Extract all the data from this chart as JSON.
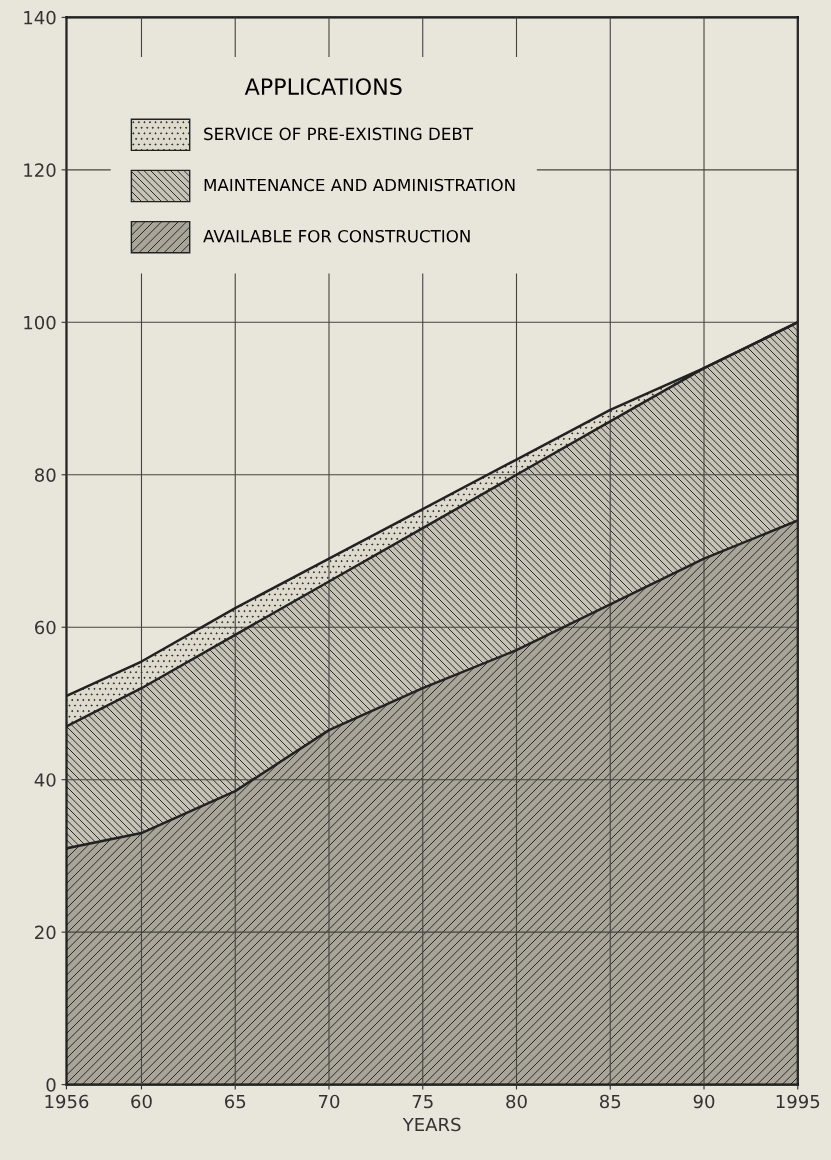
{
  "chart_data": {
    "type": "area",
    "stacked": true,
    "xlabel": "YEARS",
    "legend_title": "APPLICATIONS",
    "legend": "top left",
    "grid": true,
    "x": [
      1956,
      1960,
      1965,
      1970,
      1975,
      1980,
      1985,
      1990,
      1995
    ],
    "series": [
      {
        "name": "AVAILABLE FOR CONSTRUCTION",
        "color": "#a9a598",
        "values": [
          31,
          33,
          38.5,
          46.5,
          52,
          57,
          63,
          69,
          74
        ]
      },
      {
        "name": "MAINTENANCE AND ADMINISTRATION",
        "color": "#c6c2b5",
        "values": [
          16,
          19,
          20.5,
          19.5,
          21,
          23,
          24,
          25,
          26
        ]
      },
      {
        "name": "SERVICE OF PRE-EXISTING DEBT",
        "color": "#dedacd",
        "values": [
          4,
          3.5,
          3.5,
          3,
          2.5,
          2,
          1.5,
          0,
          0
        ]
      }
    ],
    "xlim": [
      1956,
      1995
    ],
    "ylim": [
      0,
      140
    ],
    "xticks": [
      1956,
      {
        "value": 1960,
        "label": "60"
      },
      {
        "value": 1965,
        "label": "65"
      },
      {
        "value": 1970,
        "label": "70"
      },
      {
        "value": 1975,
        "label": "75"
      },
      {
        "value": 1980,
        "label": "80"
      },
      {
        "value": 1985,
        "label": "85"
      },
      {
        "value": 1990,
        "label": "90"
      },
      1995
    ],
    "yticks": [
      0,
      20,
      40,
      60,
      80,
      100,
      120,
      140
    ]
  }
}
